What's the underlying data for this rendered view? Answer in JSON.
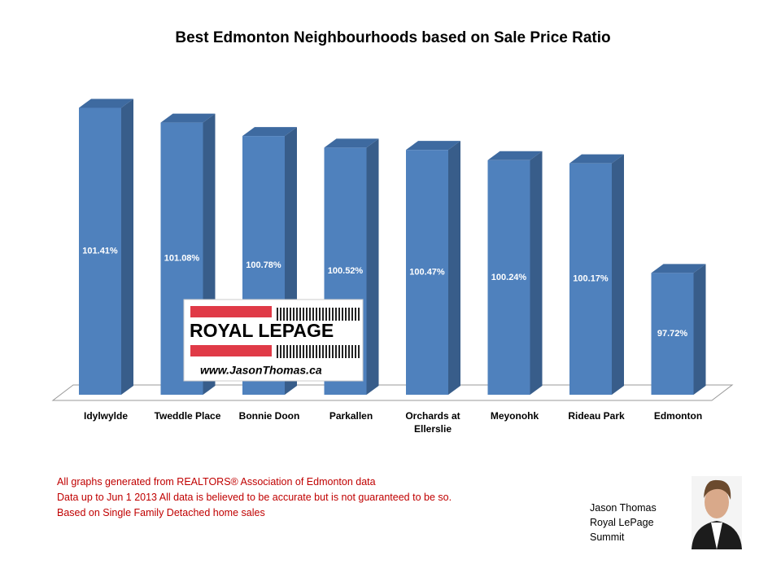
{
  "chart_data": {
    "type": "bar3d",
    "title": "Best Edmonton Neighbourhoods based on Sale Price Ratio",
    "categories": [
      "Idylwylde",
      "Tweddle Place",
      "Bonnie Doon",
      "Parkallen",
      "Orchards at Ellerslie",
      "Meyonohk",
      "Rideau Park",
      "Edmonton"
    ],
    "values": [
      101.41,
      101.08,
      100.78,
      100.52,
      100.47,
      100.24,
      100.17,
      97.72
    ],
    "value_labels": [
      "101.41%",
      "101.08%",
      "100.78%",
      "100.52%",
      "100.47%",
      "100.24%",
      "100.17%",
      "97.72%"
    ],
    "color": "#4f81bd",
    "ylim": [
      95,
      102
    ]
  },
  "logo": {
    "brand": "ROYAL LEPAGE",
    "url": "www.JasonThomas.ca"
  },
  "footnotes": [
    "All graphs generated from REALTORS® Association of Edmonton data",
    "Data up to  Jun 1 2013  All data is believed to be accurate but is not guaranteed to be so.",
    "Based on Single Family Detached home sales"
  ],
  "signature": [
    "Jason Thomas",
    "Royal LePage",
    "Summit"
  ]
}
